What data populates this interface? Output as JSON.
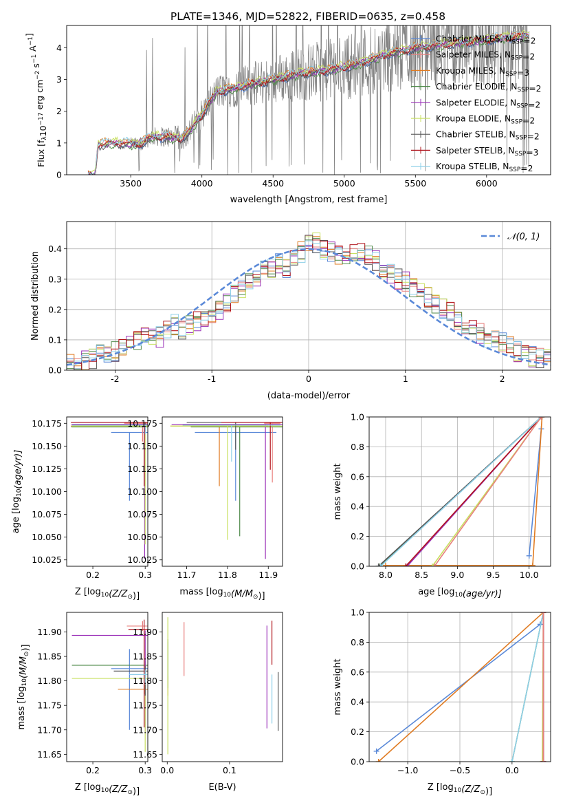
{
  "figure": {
    "title": "PLATE=1346, MJD=52822, FIBERID=0635, z=0.458"
  },
  "models": [
    {
      "name": "Chabrier MILES, N$_{SSP}$=2",
      "label": "Chabrier MILES, N",
      "sub": "SSP",
      "suffix": "=2",
      "color": "#5a89d8"
    },
    {
      "name": "Salpeter MILES, N$_{SSP}$=2",
      "label": "Salpeter MILES, N",
      "sub": "SSP",
      "suffix": "=2",
      "color": "#e8807e"
    },
    {
      "name": "Kroupa MILES, N$_{SSP}$=3",
      "label": "Kroupa MILES, N",
      "sub": "SSP",
      "suffix": "=3",
      "color": "#e07b22"
    },
    {
      "name": "Chabrier ELODIE, N$_{SSP}$=2",
      "label": "Chabrier ELODIE, N",
      "sub": "SSP",
      "suffix": "=2",
      "color": "#4f8a4a"
    },
    {
      "name": "Salpeter ELODIE, N$_{SSP}$=2",
      "label": "Salpeter ELODIE, N",
      "sub": "SSP",
      "suffix": "=2",
      "color": "#9a30b8"
    },
    {
      "name": "Kroupa ELODIE, N$_{SSP}$=2",
      "label": "Kroupa ELODIE, N",
      "sub": "SSP",
      "suffix": "=2",
      "color": "#c8e060"
    },
    {
      "name": "Chabrier STELIB, N$_{SSP}$=2",
      "label": "Chabrier STELIB, N",
      "sub": "SSP",
      "suffix": "=2",
      "color": "#555555"
    },
    {
      "name": "Salpeter STELIB, N$_{SSP}$=3",
      "label": "Salpeter STELIB, N",
      "sub": "SSP",
      "suffix": "=3",
      "color": "#b0141c"
    },
    {
      "name": "Kroupa STELIB, N$_{SSP}$=2",
      "label": "Kroupa STELIB, N",
      "sub": "SSP",
      "suffix": "=2",
      "color": "#8fd0e8"
    }
  ],
  "chart_data": [
    {
      "id": "spectrum",
      "type": "line",
      "xlabel": "wavelength [Angstrom, rest frame]",
      "ylabel_text": "Flux [f",
      "ylabel_sub": "λ",
      "ylabel_rest": "10",
      "ylabel_exp": "−17",
      "ylabel_units": " erg cm",
      "ylabel_units_exp": "−2",
      "ylabel_s": " s",
      "ylabel_s_exp": "−1",
      "ylabel_a": " A",
      "ylabel_a_exp": "−1",
      "ylabel_end": "]",
      "xlim": [
        3050,
        6450
      ],
      "ylim": [
        0,
        4.7
      ],
      "xticks": [
        3500,
        4000,
        4500,
        5000,
        5500,
        6000
      ],
      "yticks": [
        0,
        1,
        2,
        3,
        4
      ],
      "grid": false,
      "legend": "right",
      "observed_color": "#808080",
      "observed_range": [
        3500,
        6300
      ],
      "model_range": [
        3200,
        6300
      ],
      "model_trend": [
        {
          "x": 3200,
          "y": 0.0
        },
        {
          "x": 3250,
          "y": 0.0
        },
        {
          "x": 3270,
          "y": 0.95
        },
        {
          "x": 3350,
          "y": 1.0
        },
        {
          "x": 3450,
          "y": 1.0
        },
        {
          "x": 3550,
          "y": 0.95
        },
        {
          "x": 3650,
          "y": 1.2
        },
        {
          "x": 3750,
          "y": 1.2
        },
        {
          "x": 3850,
          "y": 1.15
        },
        {
          "x": 3900,
          "y": 1.3
        },
        {
          "x": 4000,
          "y": 1.9
        },
        {
          "x": 4100,
          "y": 2.6
        },
        {
          "x": 4300,
          "y": 2.8
        },
        {
          "x": 4500,
          "y": 3.0
        },
        {
          "x": 4700,
          "y": 3.2
        },
        {
          "x": 4900,
          "y": 3.3
        },
        {
          "x": 5100,
          "y": 3.5
        },
        {
          "x": 5300,
          "y": 3.8
        },
        {
          "x": 5500,
          "y": 4.0
        },
        {
          "x": 5700,
          "y": 4.1
        },
        {
          "x": 5900,
          "y": 4.2
        },
        {
          "x": 6100,
          "y": 4.3
        },
        {
          "x": 6300,
          "y": 4.4
        }
      ]
    },
    {
      "id": "residuals",
      "type": "line",
      "xlabel": "(data-model)/error",
      "ylabel": "Normed distribution",
      "xlim": [
        -2.5,
        2.5
      ],
      "ylim": [
        0,
        0.49
      ],
      "xticks": [
        -2,
        -1,
        0,
        1,
        2
      ],
      "yticks": [
        0.0,
        0.1,
        0.2,
        0.3,
        0.4
      ],
      "ytick_labels": [
        "0.0",
        "0.1",
        "0.2",
        "0.3",
        "0.4"
      ],
      "grid": true,
      "legend": "top-right",
      "normal_label": "𝒩(0, 1)",
      "normal_color": "#5a89d8",
      "bin_width": 0.1,
      "bin_start": -2.5,
      "histogram_base": [
        0.02,
        0.025,
        0.03,
        0.04,
        0.05,
        0.045,
        0.06,
        0.07,
        0.085,
        0.1,
        0.11,
        0.12,
        0.11,
        0.14,
        0.15,
        0.13,
        0.15,
        0.16,
        0.17,
        0.18,
        0.2,
        0.22,
        0.25,
        0.27,
        0.29,
        0.31,
        0.33,
        0.34,
        0.35,
        0.34,
        0.37,
        0.39,
        0.41,
        0.42,
        0.4,
        0.39,
        0.38,
        0.37,
        0.38,
        0.39,
        0.38,
        0.36,
        0.34,
        0.32,
        0.3,
        0.29,
        0.27,
        0.26,
        0.24,
        0.22,
        0.2,
        0.19,
        0.17,
        0.15,
        0.13,
        0.12,
        0.11,
        0.1,
        0.09,
        0.08,
        0.06,
        0.05,
        0.045,
        0.04,
        0.035
      ]
    },
    {
      "id": "age-vs-Z",
      "type": "scatter",
      "xlabel_text": "Z [log",
      "xlabel_sub": "10",
      "xlabel_rest": "(Z/Z",
      "xlabel_sun": "⊙",
      "xlabel_end": ")]",
      "ylabel_text": "age  [log",
      "ylabel_sub": "10",
      "ylabel_rest": "(age/yr)]",
      "xlim": [
        0.15,
        0.305
      ],
      "ylim": [
        10.018,
        10.182
      ],
      "xticks": [
        0.2,
        0.3
      ],
      "xtick_labels": [
        "0.2",
        "0.3"
      ],
      "yticks": [
        10.025,
        10.05,
        10.075,
        10.1,
        10.125,
        10.15,
        10.175
      ],
      "ytick_labels": [
        "10.025",
        "10.050",
        "10.075",
        "10.100",
        "10.125",
        "10.150",
        "10.175"
      ],
      "grid": false,
      "points": [
        {
          "model": 0,
          "x": 0.27,
          "y": 10.165,
          "xerr": 0.035,
          "yerr": [
            0.075,
            0.0
          ]
        },
        {
          "model": 1,
          "x": 0.295,
          "y": 10.175,
          "xerr": 0.035,
          "yerr": [
            0.02,
            0.0
          ]
        },
        {
          "model": 2,
          "x": 0.298,
          "y": 10.172,
          "xerr": 0.14,
          "yerr": [
            0.01,
            0.0
          ]
        },
        {
          "model": 3,
          "x": 0.299,
          "y": 10.171,
          "xerr": 0.14,
          "yerr": [
            0.02,
            0.0
          ]
        },
        {
          "model": 4,
          "x": 0.299,
          "y": 10.174,
          "xerr": 0.14,
          "yerr": [
            0.148,
            0.0
          ]
        },
        {
          "model": 5,
          "x": 0.3,
          "y": 10.172,
          "xerr": 0.14,
          "yerr": [
            0.13,
            0.0
          ]
        },
        {
          "model": 6,
          "x": 0.3,
          "y": 10.176,
          "xerr": 0.14,
          "yerr": [
            0.01,
            0.0
          ]
        },
        {
          "model": 7,
          "x": 0.298,
          "y": 10.176,
          "xerr": 0.14,
          "yerr": [
            0.07,
            0.0
          ]
        },
        {
          "model": 8,
          "x": 0.3,
          "y": 10.173,
          "xerr": 0.14,
          "yerr": [
            0.01,
            0.0
          ]
        }
      ]
    },
    {
      "id": "age-vs-mass",
      "type": "scatter",
      "xlabel_text": "mass [log",
      "xlabel_sub": "10",
      "xlabel_rest": "(M/M",
      "xlabel_sun": "⊙",
      "xlabel_end": ")]",
      "xlim": [
        11.64,
        11.935
      ],
      "ylim": [
        10.018,
        10.182
      ],
      "xticks": [
        11.7,
        11.8,
        11.9
      ],
      "xtick_labels": [
        "11.7",
        "11.8",
        "11.9"
      ],
      "yticks": [
        10.025,
        10.05,
        10.075,
        10.1,
        10.125,
        10.15,
        10.175
      ],
      "ytick_labels": [
        "10.025",
        "10.050",
        "10.075",
        "10.100",
        "10.125",
        "10.150",
        "10.175"
      ],
      "grid": false,
      "points": [
        {
          "model": 0,
          "x": 11.82,
          "y": 10.165,
          "xerr": 0.1,
          "yerr": [
            0.075,
            0.0
          ]
        },
        {
          "model": 1,
          "x": 11.91,
          "y": 10.175,
          "xerr": 0.02,
          "yerr": [
            0.065,
            0.0
          ]
        },
        {
          "model": 2,
          "x": 11.78,
          "y": 10.172,
          "xerr": 0.12,
          "yerr": [
            0.066,
            0.0
          ]
        },
        {
          "model": 3,
          "x": 11.83,
          "y": 10.171,
          "xerr": 0.12,
          "yerr": [
            0.12,
            0.0
          ]
        },
        {
          "model": 4,
          "x": 11.893,
          "y": 10.174,
          "xerr": 0.23,
          "yerr": [
            0.148,
            0.0
          ]
        },
        {
          "model": 5,
          "x": 11.8,
          "y": 10.172,
          "xerr": 0.14,
          "yerr": [
            0.125,
            0.0
          ]
        },
        {
          "model": 6,
          "x": 11.82,
          "y": 10.176,
          "xerr": 0.12,
          "yerr": [
            0.03,
            0.0
          ]
        },
        {
          "model": 7,
          "x": 11.905,
          "y": 10.176,
          "xerr": 0.12,
          "yerr": [
            0.052,
            0.0
          ]
        },
        {
          "model": 8,
          "x": 11.81,
          "y": 10.173,
          "xerr": 0.12,
          "yerr": [
            0.04,
            0.0
          ]
        }
      ]
    },
    {
      "id": "mass-weight-vs-age",
      "type": "line",
      "xlabel_text": "age  [log",
      "xlabel_sub": "10",
      "xlabel_rest": "(age/yr)]",
      "ylabel": "mass weight",
      "xlim": [
        7.77,
        10.3
      ],
      "ylim": [
        0,
        1
      ],
      "xticks": [
        8.0,
        8.5,
        9.0,
        9.5,
        10.0
      ],
      "xtick_labels": [
        "8.0",
        "8.5",
        "9.0",
        "9.5",
        "10.0"
      ],
      "yticks": [
        0.0,
        0.2,
        0.4,
        0.6,
        0.8,
        1.0
      ],
      "ytick_labels": [
        "0.0",
        "0.2",
        "0.4",
        "0.6",
        "0.8",
        "1.0"
      ],
      "grid": true,
      "series": [
        {
          "model": 0,
          "x": [
            10.0,
            10.17
          ],
          "y": [
            0.07,
            0.92
          ]
        },
        {
          "model": 2,
          "x": [
            8.0,
            10.05,
            10.18
          ],
          "y": [
            0.005,
            0.005,
            1.0
          ]
        },
        {
          "model": 3,
          "x": [
            7.92,
            10.17
          ],
          "y": [
            0.0,
            1.0
          ]
        },
        {
          "model": 4,
          "x": [
            8.3,
            10.17
          ],
          "y": [
            0.0,
            1.0
          ]
        },
        {
          "model": 5,
          "x": [
            8.65,
            10.17
          ],
          "y": [
            0.0,
            1.0
          ]
        },
        {
          "model": 6,
          "x": [
            7.9,
            10.17
          ],
          "y": [
            0.0,
            1.0
          ]
        },
        {
          "model": 7,
          "x": [
            8.28,
            10.17
          ],
          "y": [
            0.0,
            1.0
          ]
        },
        {
          "model": 8,
          "x": [
            7.93,
            10.17
          ],
          "y": [
            0.0,
            1.0
          ]
        },
        {
          "model": 1,
          "x": [
            8.68,
            10.17
          ],
          "y": [
            0.0,
            1.0
          ]
        }
      ]
    },
    {
      "id": "mass-vs-Z",
      "type": "scatter",
      "xlabel_text": "Z [log",
      "xlabel_sub": "10",
      "xlabel_rest": "(Z/Z",
      "xlabel_sun": "⊙",
      "xlabel_end": ")]",
      "ylabel_text": "mass [log",
      "ylabel_sub": "10",
      "ylabel_rest": "(M/M",
      "ylabel_sun": "⊙",
      "ylabel_end": ")]",
      "xlim": [
        0.15,
        0.305
      ],
      "ylim": [
        11.635,
        11.94
      ],
      "xticks": [
        0.2,
        0.3
      ],
      "xtick_labels": [
        "0.2",
        "0.3"
      ],
      "yticks": [
        11.65,
        11.7,
        11.75,
        11.8,
        11.85,
        11.9
      ],
      "ytick_labels": [
        "11.65",
        "11.70",
        "11.75",
        "11.80",
        "11.85",
        "11.90"
      ],
      "grid": false,
      "points": [
        {
          "model": 0,
          "x": 0.27,
          "y": 11.825,
          "xerr": 0.035,
          "yerr": [
            0.125,
            0.04
          ]
        },
        {
          "model": 1,
          "x": 0.295,
          "y": 11.912,
          "xerr": 0.03,
          "yerr": [
            0.01,
            0.01
          ]
        },
        {
          "model": 2,
          "x": 0.298,
          "y": 11.783,
          "xerr": 0.05,
          "yerr": [
            0.01,
            0.01
          ]
        },
        {
          "model": 3,
          "x": 0.3,
          "y": 11.832,
          "xerr": 0.14,
          "yerr": [
            0.05,
            0.01
          ]
        },
        {
          "model": 4,
          "x": 0.3,
          "y": 11.893,
          "xerr": 0.14,
          "yerr": [
            0.2,
            0.01
          ]
        },
        {
          "model": 5,
          "x": 0.3,
          "y": 11.805,
          "xerr": 0.14,
          "yerr": [
            0.15,
            0.01
          ]
        },
        {
          "model": 6,
          "x": 0.3,
          "y": 11.82,
          "xerr": 0.06,
          "yerr": [
            0.05,
            0.01
          ]
        },
        {
          "model": 7,
          "x": 0.298,
          "y": 11.905,
          "xerr": 0.03,
          "yerr": [
            0.2,
            0.02
          ]
        },
        {
          "model": 8,
          "x": 0.3,
          "y": 11.813,
          "xerr": 0.03,
          "yerr": [
            0.02,
            0.01
          ]
        }
      ]
    },
    {
      "id": "mass-vs-ebv",
      "type": "scatter",
      "xlabel": "E(B-V)",
      "xlim": [
        -0.008,
        0.185
      ],
      "ylim": [
        11.635,
        11.94
      ],
      "xticks": [
        0.0,
        0.1
      ],
      "xtick_labels": [
        "0.0",
        "0.1"
      ],
      "yticks": [
        11.65,
        11.7,
        11.75,
        11.8,
        11.85,
        11.9
      ],
      "ytick_labels": [
        "11.65",
        "11.70",
        "11.75",
        "11.80",
        "11.85",
        "11.90"
      ],
      "grid": false,
      "points": [
        {
          "model": 0,
          "x": 0.001,
          "y": 11.84,
          "xerr": 0,
          "yerr": [
            0.04,
            0.04
          ]
        },
        {
          "model": 1,
          "x": 0.027,
          "y": 11.865,
          "xerr": 0,
          "yerr": [
            0.055,
            0.055
          ]
        },
        {
          "model": 2,
          "x": 0.001,
          "y": 11.79,
          "xerr": 0,
          "yerr": [
            0.02,
            0.02
          ]
        },
        {
          "model": 3,
          "x": 0.001,
          "y": 11.835,
          "xerr": 0,
          "yerr": [
            0.05,
            0.05
          ]
        },
        {
          "model": 4,
          "x": 0.16,
          "y": 11.808,
          "xerr": 0,
          "yerr": [
            0.105,
            0.105
          ]
        },
        {
          "model": 5,
          "x": 0.001,
          "y": 11.79,
          "xerr": 0,
          "yerr": [
            0.14,
            0.14
          ]
        },
        {
          "model": 6,
          "x": 0.178,
          "y": 11.758,
          "xerr": 0,
          "yerr": [
            0.06,
            0.06
          ]
        },
        {
          "model": 7,
          "x": 0.168,
          "y": 11.878,
          "xerr": 0,
          "yerr": [
            0.045,
            0.045
          ]
        },
        {
          "model": 8,
          "x": 0.168,
          "y": 11.763,
          "xerr": 0,
          "yerr": [
            0.05,
            0.05
          ]
        }
      ]
    },
    {
      "id": "mass-weight-vs-Z",
      "type": "line",
      "xlabel_text": "Z [log",
      "xlabel_sub": "10",
      "xlabel_rest": "(Z/Z",
      "xlabel_sun": "⊙",
      "xlabel_end": ")]",
      "ylabel": "mass weight",
      "xlim": [
        -1.37,
        0.37
      ],
      "ylim": [
        0,
        1
      ],
      "xticks": [
        -1.0,
        -0.5,
        0.0
      ],
      "xtick_labels": [
        "−1.0",
        "−0.5",
        "0.0"
      ],
      "yticks": [
        0.0,
        0.2,
        0.4,
        0.6,
        0.8,
        1.0
      ],
      "ytick_labels": [
        "0.0",
        "0.2",
        "0.4",
        "0.6",
        "0.8",
        "1.0"
      ],
      "grid": true,
      "series": [
        {
          "model": 0,
          "x": [
            -1.3,
            0.27
          ],
          "y": [
            0.07,
            0.92
          ]
        },
        {
          "model": 2,
          "x": [
            -1.28,
            0.3
          ],
          "y": [
            0.0,
            1.0
          ]
        },
        {
          "model": 3,
          "x": [
            0.0,
            0.3
          ],
          "y": [
            0.0,
            1.0
          ]
        },
        {
          "model": 8,
          "x": [
            0.0,
            0.3
          ],
          "y": [
            0.0,
            1.0
          ]
        },
        {
          "model": 4,
          "x": [
            0.3,
            0.3
          ],
          "y": [
            0.0,
            1.0
          ]
        },
        {
          "model": 5,
          "x": [
            0.29,
            0.3
          ],
          "y": [
            0.0,
            1.0
          ]
        },
        {
          "model": 6,
          "x": [
            0.3,
            0.3
          ],
          "y": [
            0.0,
            1.0
          ]
        },
        {
          "model": 7,
          "x": [
            0.3,
            0.3
          ],
          "y": [
            0.0,
            1.0
          ]
        },
        {
          "model": 1,
          "x": [
            0.3,
            0.3
          ],
          "y": [
            0.0,
            1.0
          ]
        }
      ]
    }
  ]
}
